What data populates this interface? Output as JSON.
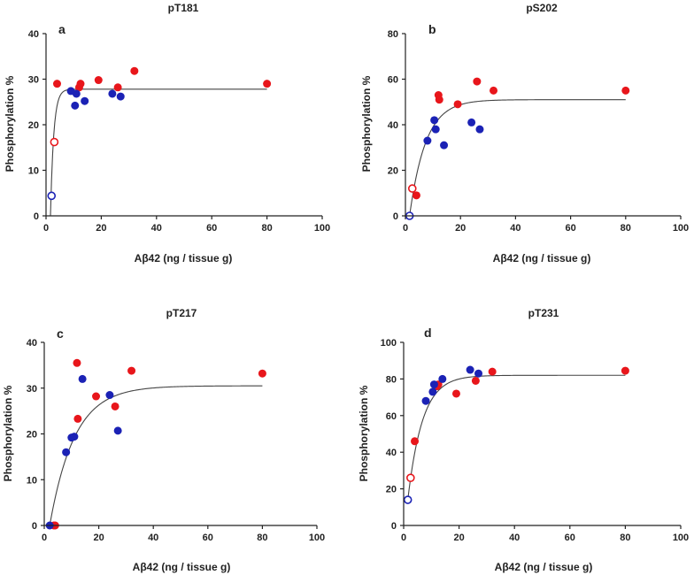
{
  "figure": {
    "colors": {
      "red": "#e8161b",
      "blue": "#1b22b5",
      "curve": "#444444",
      "axis": "#222222"
    }
  },
  "chart_data": [
    {
      "panel": "a",
      "type": "scatter",
      "title": "pT181",
      "xlabel": "Aβ42 (ng / tissue g)",
      "ylabel": "Phosphorylation %",
      "xlim": [
        0,
        100
      ],
      "ylim": [
        0,
        40
      ],
      "xticks": [
        0,
        20,
        40,
        60,
        80,
        100
      ],
      "yticks": [
        0,
        10,
        20,
        30,
        40
      ],
      "series": [
        {
          "name": "red",
          "color": "red",
          "hollow": false,
          "points": [
            [
              4,
              29
            ],
            [
              12,
              28.2
            ],
            [
              12.5,
              29
            ],
            [
              19,
              29.8
            ],
            [
              26,
              28.2
            ],
            [
              32,
              31.8
            ],
            [
              80,
              29
            ]
          ]
        },
        {
          "name": "blue",
          "color": "blue",
          "hollow": false,
          "points": [
            [
              9,
              27.4
            ],
            [
              10.5,
              24.2
            ],
            [
              11,
              26.8
            ],
            [
              14,
              25.2
            ],
            [
              24,
              26.8
            ],
            [
              27,
              26.2
            ]
          ]
        },
        {
          "name": "red-open",
          "color": "red",
          "hollow": true,
          "points": [
            [
              3,
              16.2
            ]
          ]
        },
        {
          "name": "blue-open",
          "color": "blue",
          "hollow": true,
          "points": [
            [
              2,
              4.4
            ]
          ]
        }
      ],
      "fit": {
        "model": "one-phase association",
        "plateau": 27.8,
        "k": 0.85,
        "x0": 1.6,
        "xmax": 80
      }
    },
    {
      "panel": "b",
      "type": "scatter",
      "title": "pS202",
      "xlabel": "Aβ42 (ng / tissue g)",
      "ylabel": "Phosphorylation %",
      "xlim": [
        0,
        100
      ],
      "ylim": [
        0,
        80
      ],
      "xticks": [
        0,
        20,
        40,
        60,
        80,
        100
      ],
      "yticks": [
        0,
        20,
        40,
        60,
        80
      ],
      "series": [
        {
          "name": "red",
          "color": "red",
          "hollow": false,
          "points": [
            [
              4,
              9
            ],
            [
              12,
              53
            ],
            [
              12.3,
              51
            ],
            [
              19,
              49
            ],
            [
              26,
              59
            ],
            [
              32,
              55
            ],
            [
              80,
              55
            ]
          ]
        },
        {
          "name": "blue",
          "color": "blue",
          "hollow": false,
          "points": [
            [
              8,
              33
            ],
            [
              10.5,
              42
            ],
            [
              11,
              38
            ],
            [
              14,
              31
            ],
            [
              24,
              41
            ],
            [
              27,
              38
            ]
          ]
        },
        {
          "name": "red-open",
          "color": "red",
          "hollow": true,
          "points": [
            [
              2.5,
              12
            ]
          ]
        },
        {
          "name": "blue-open",
          "color": "blue",
          "hollow": true,
          "points": [
            [
              1.5,
              0
            ]
          ]
        }
      ],
      "fit": {
        "model": "one-phase association",
        "plateau": 51,
        "k": 0.17,
        "x0": 1.5,
        "xmax": 80
      }
    },
    {
      "panel": "c",
      "type": "scatter",
      "title": "pT217",
      "xlabel": "Aβ42 (ng / tissue g)",
      "ylabel": "Phosphorylation %",
      "xlim": [
        0,
        100
      ],
      "ylim": [
        0,
        40
      ],
      "xticks": [
        0,
        20,
        40,
        60,
        80,
        100
      ],
      "yticks": [
        0,
        10,
        20,
        30,
        40
      ],
      "series": [
        {
          "name": "red",
          "color": "red",
          "hollow": false,
          "points": [
            [
              3.5,
              0
            ],
            [
              4,
              0
            ],
            [
              12,
              35.5
            ],
            [
              12.3,
              23.3
            ],
            [
              19,
              28.2
            ],
            [
              26,
              26
            ],
            [
              32,
              33.8
            ],
            [
              80,
              33.2
            ]
          ]
        },
        {
          "name": "blue",
          "color": "blue",
          "hollow": false,
          "points": [
            [
              2,
              0
            ],
            [
              8,
              16
            ],
            [
              10,
              19.2
            ],
            [
              11,
              19.4
            ],
            [
              14,
              32
            ],
            [
              24,
              28.5
            ],
            [
              27,
              20.7
            ]
          ]
        }
      ],
      "fit": {
        "model": "one-phase association",
        "plateau": 30.5,
        "k": 0.11,
        "x0": 2,
        "xmax": 80
      }
    },
    {
      "panel": "d",
      "type": "scatter",
      "title": "pT231",
      "xlabel": "Aβ42 (ng / tissue g)",
      "ylabel": "Phosphorylation %",
      "xlim": [
        0,
        100
      ],
      "ylim": [
        0,
        100
      ],
      "xticks": [
        0,
        20,
        40,
        60,
        80,
        100
      ],
      "yticks": [
        0,
        20,
        40,
        60,
        80,
        100
      ],
      "series": [
        {
          "name": "red",
          "color": "red",
          "hollow": false,
          "points": [
            [
              4,
              46
            ],
            [
              12,
              76
            ],
            [
              12.5,
              77
            ],
            [
              19,
              72
            ],
            [
              26,
              79
            ],
            [
              32,
              84
            ],
            [
              80,
              84.5
            ]
          ]
        },
        {
          "name": "blue",
          "color": "blue",
          "hollow": false,
          "points": [
            [
              8,
              68
            ],
            [
              10.5,
              73
            ],
            [
              11,
              77
            ],
            [
              14,
              80
            ],
            [
              24,
              85
            ],
            [
              27,
              83
            ]
          ]
        },
        {
          "name": "red-open",
          "color": "red",
          "hollow": true,
          "points": [
            [
              2.5,
              26
            ]
          ]
        },
        {
          "name": "blue-open",
          "color": "blue",
          "hollow": true,
          "points": [
            [
              1.5,
              14
            ]
          ]
        }
      ],
      "fit": {
        "model": "one-phase association",
        "plateau": 82,
        "k": 0.19,
        "x0": 1.5,
        "y0": 14,
        "xmax": 80
      }
    }
  ]
}
